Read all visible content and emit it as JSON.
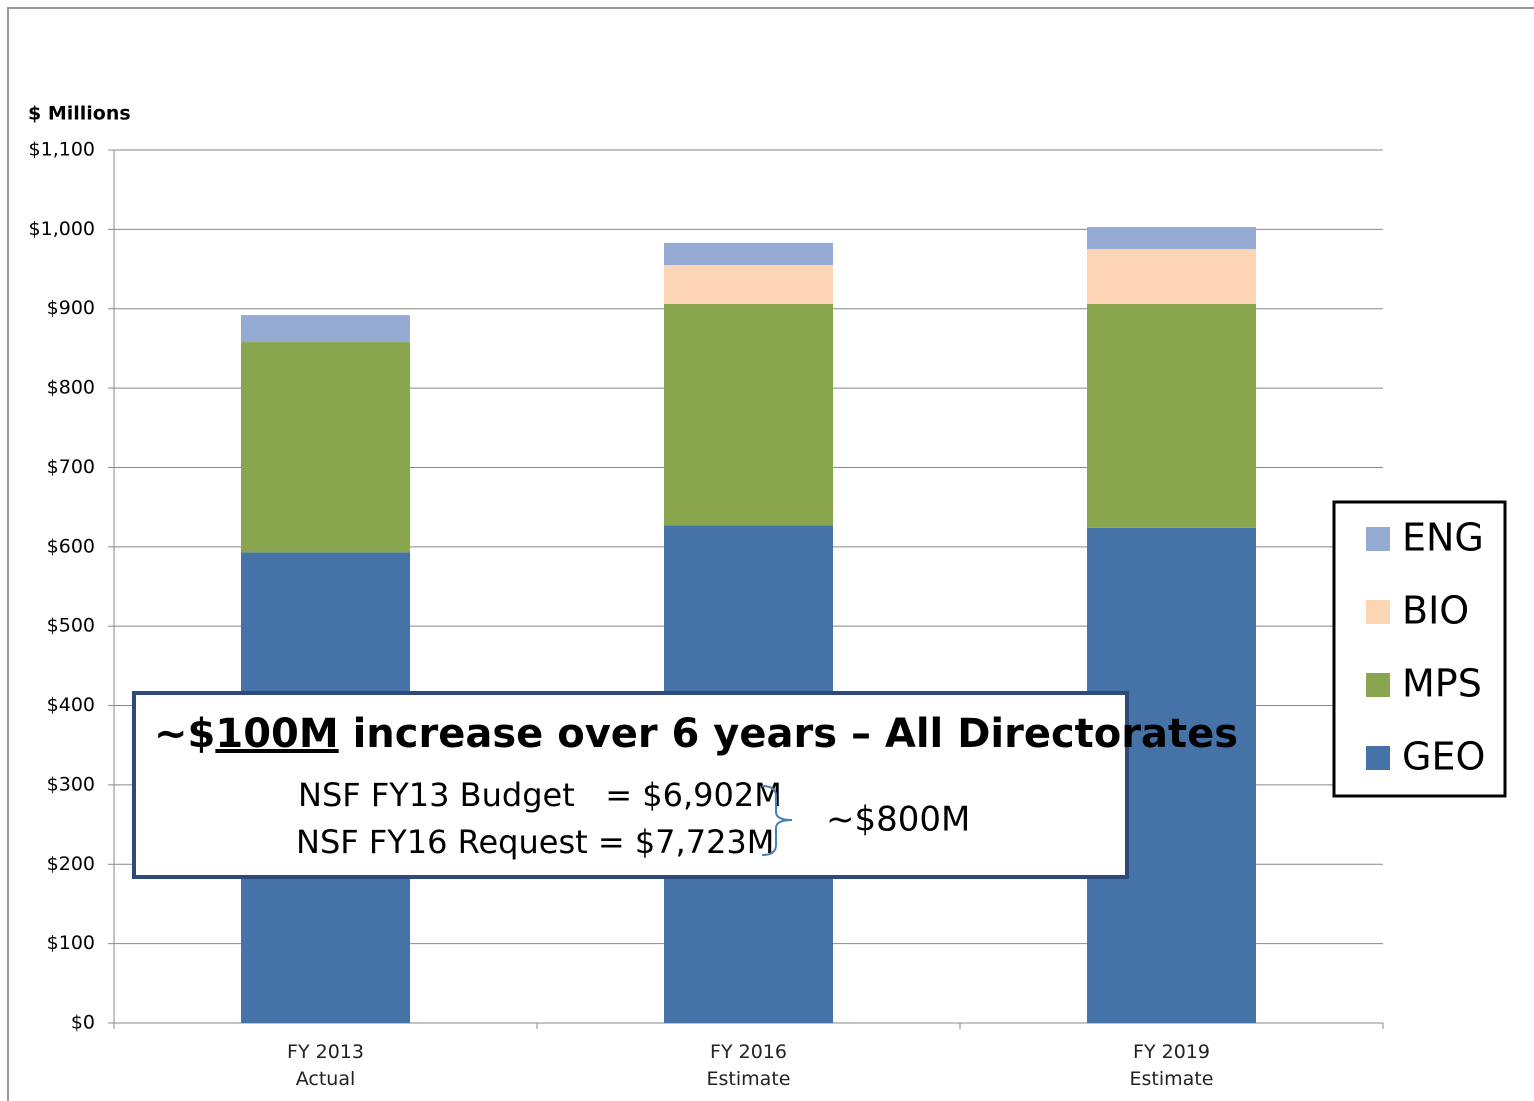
{
  "chart_data": {
    "type": "stacked_bar",
    "y_axis_label": "$ Millions",
    "categories": [
      "FY 2013\nActual",
      "FY 2016\nEstimate",
      "FY 2019\nEstimate"
    ],
    "series": [
      {
        "name": "GEO",
        "color": "#4572a7",
        "values": [
          593,
          627,
          624
        ]
      },
      {
        "name": "MPS",
        "color": "#89a54e",
        "values": [
          265,
          279,
          282
        ]
      },
      {
        "name": "BIO",
        "color": "#fcd5b5",
        "values": [
          0,
          49,
          69
        ]
      },
      {
        "name": "ENG",
        "color": "#95abd4",
        "values": [
          34,
          28,
          28
        ]
      }
    ],
    "ylim": [
      0,
      1100
    ],
    "yticks": [
      {
        "value": 0,
        "label": "$0"
      },
      {
        "value": 100,
        "label": "$100"
      },
      {
        "value": 200,
        "label": "$200"
      },
      {
        "value": 300,
        "label": "$300"
      },
      {
        "value": 400,
        "label": "$400"
      },
      {
        "value": 500,
        "label": "$500"
      },
      {
        "value": 600,
        "label": "$600"
      },
      {
        "value": 700,
        "label": "$700"
      },
      {
        "value": 800,
        "label": "$800"
      },
      {
        "value": 900,
        "label": "$900"
      },
      {
        "value": 1000,
        "label": "$1,000"
      },
      {
        "value": 1100,
        "label": "$1,100"
      }
    ],
    "grid": true,
    "legend": "right",
    "annotation": {
      "headline_prefix": "~$",
      "headline_underlined": "100M",
      "headline_rest": " increase over 6 years – All Directorates",
      "line1": "NSF FY13 Budget   = $6,902M",
      "line2": "NSF FY16 Request = $7,723M",
      "brace_note": "~$800M"
    }
  }
}
